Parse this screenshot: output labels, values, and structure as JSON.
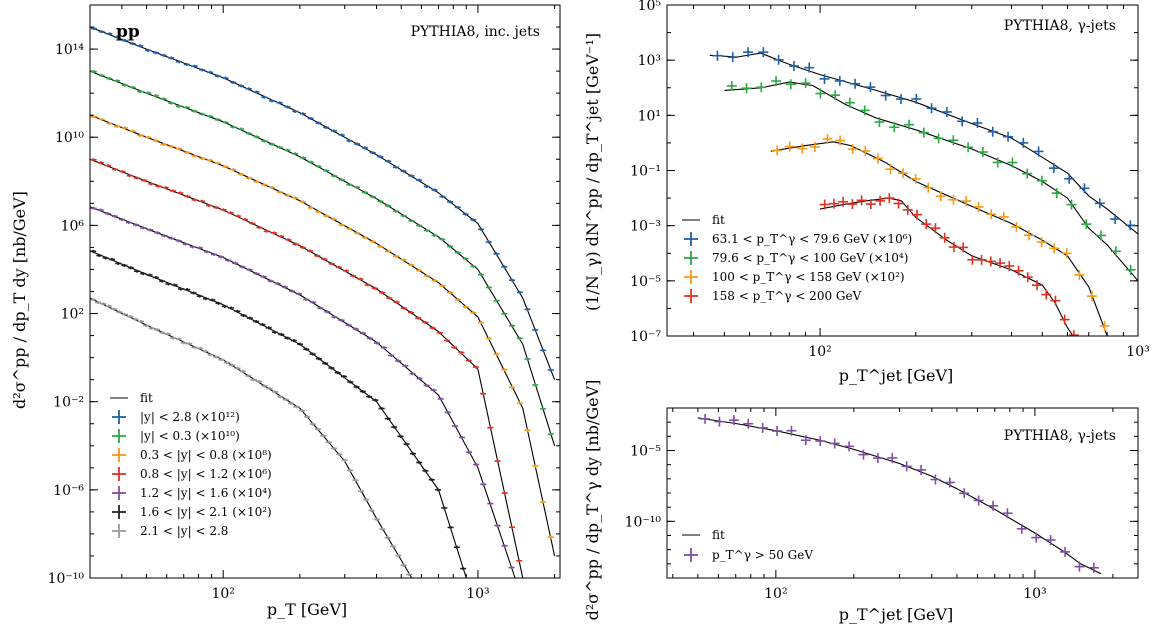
{
  "chart_data": [
    {
      "type": "line",
      "title": "",
      "annotations": {
        "corner_label": "pp",
        "generator": "PYTHIA8, inc. jets"
      },
      "xlabel": "p_T [GeV]",
      "ylabel": "d²σ^pp / dp_T dy [nb/GeV]",
      "xscale": "log",
      "yscale": "log",
      "xlim": [
        30,
        2100
      ],
      "ylim": [
        1e-10,
        1e+16
      ],
      "xticks": [
        {
          "v": 100,
          "label": "10²"
        },
        {
          "v": 1000,
          "label": "10³"
        }
      ],
      "yticks": [
        {
          "v": 1e-10,
          "label": "10⁻¹⁰"
        },
        {
          "v": 1e-06,
          "label": "10⁻⁶"
        },
        {
          "v": 0.01,
          "label": "10⁻²"
        },
        {
          "v": 100.0,
          "label": "10²"
        },
        {
          "v": 1000000.0,
          "label": "10⁶"
        },
        {
          "v": 10000000000.0,
          "label": "10¹⁰"
        },
        {
          "v": 100000000000000.0,
          "label": "10¹⁴"
        }
      ],
      "legend": {
        "placement": "bottom-left",
        "fit_label": "fit"
      },
      "series": [
        {
          "name": "|y| < 2.8 (×10¹²)",
          "color": "#1f5fa8",
          "x": [
            30,
            50,
            100,
            200,
            400,
            700,
            1000,
            1500,
            2000
          ],
          "y": [
            1000000000000000.0,
            100000000000000.0,
            5000000000000.0,
            130000000000.0,
            1600000000.0,
            30000000.0,
            1200000.0,
            500,
            0.1
          ]
        },
        {
          "name": "|y| < 0.3 (×10¹⁰)",
          "color": "#2ca745",
          "x": [
            30,
            50,
            100,
            200,
            400,
            700,
            1000,
            1500,
            2000
          ],
          "y": [
            10000000000000.0,
            1000000000000.0,
            50000000000.0,
            1300000000.0,
            16000000.0,
            300000.0,
            10000.0,
            4,
            0.0001
          ]
        },
        {
          "name": "0.3 < |y| < 0.8 (×10⁸)",
          "color": "#f59a16",
          "x": [
            30,
            50,
            100,
            200,
            400,
            700,
            1000,
            1500,
            2000
          ],
          "y": [
            100000000000.0,
            10000000000.0,
            500000000.0,
            13000000.0,
            150000.0,
            2500.0,
            70,
            0.005,
            1e-09
          ]
        },
        {
          "name": "0.8 < |y| < 1.2 (×10⁶)",
          "color": "#e03020",
          "x": [
            30,
            50,
            100,
            200,
            400,
            700,
            1000,
            1500
          ],
          "y": [
            1000000000.0,
            100000000.0,
            5000000.0,
            120000.0,
            1300.0,
            15,
            0.3,
            1e-10
          ]
        },
        {
          "name": "1.2 < |y| < 1.6 (×10⁴)",
          "color": "#7e4f9e",
          "x": [
            30,
            50,
            100,
            200,
            400,
            700,
            1000,
            1400
          ],
          "y": [
            7000000.0,
            700000.0,
            35000.0,
            700,
            5,
            0.02,
            1e-05,
            1e-10
          ]
        },
        {
          "name": "1.6 < |y| < 2.1 (×10²)",
          "color": "#222222",
          "x": [
            30,
            50,
            100,
            200,
            400,
            700,
            900
          ],
          "y": [
            70000.0,
            6000.0,
            250,
            4,
            0.01,
            1e-06,
            1e-10
          ]
        },
        {
          "name": "2.1 < |y| < 2.8",
          "color": "#999999",
          "x": [
            30,
            50,
            100,
            200,
            300,
            400,
            550
          ],
          "y": [
            500,
            30,
            0.8,
            0.005,
            2e-05,
            5e-08,
            1e-10
          ]
        }
      ]
    },
    {
      "type": "line",
      "title": "",
      "annotations": {
        "generator": "PYTHIA8, γ-jets"
      },
      "xlabel": "p_T^jet [GeV]",
      "ylabel": "(1/N_γ) dN^pp / dp_T^jet [GeV⁻¹]",
      "xscale": "log",
      "yscale": "log",
      "xlim": [
        33,
        1000
      ],
      "ylim": [
        1e-07,
        100000.0
      ],
      "xticks": [
        {
          "v": 100,
          "label": "10²"
        },
        {
          "v": 1000,
          "label": "10³"
        }
      ],
      "yticks": [
        {
          "v": 1e-07,
          "label": "10⁻⁷"
        },
        {
          "v": 1e-05,
          "label": "10⁻⁵"
        },
        {
          "v": 0.001,
          "label": "10⁻³"
        },
        {
          "v": 0.1,
          "label": "10⁻¹"
        },
        {
          "v": 10,
          "label": "10¹"
        },
        {
          "v": 1000,
          "label": "10³"
        },
        {
          "v": 100000.0,
          "label": "10⁵"
        }
      ],
      "legend": {
        "placement": "lower-left",
        "fit_label": "fit"
      },
      "series": [
        {
          "name": "63.1 < p_T^γ < 79.6 GeV (×10⁶)",
          "color": "#1f5fa8",
          "x": [
            45,
            55,
            65,
            80,
            100,
            150,
            200,
            300,
            400,
            500,
            600,
            700,
            800,
            1000
          ],
          "y": [
            1500,
            1300,
            1800,
            700,
            300,
            80,
            30,
            5,
            1.5,
            0.3,
            0.08,
            0.012,
            0.004,
            0.0005
          ]
        },
        {
          "name": "79.6 < p_T^γ < 100 GeV (×10⁴)",
          "color": "#2ca745",
          "x": [
            50,
            65,
            80,
            95,
            120,
            150,
            200,
            300,
            400,
            500,
            600,
            700,
            800,
            1000
          ],
          "y": [
            80,
            100,
            160,
            120,
            25,
            8,
            3,
            0.6,
            0.15,
            0.04,
            0.01,
            0.0008,
            0.0002,
            1e-05
          ]
        },
        {
          "name": "100 < p_T^γ < 158 GeV (×10²)",
          "color": "#f59a16",
          "x": [
            70,
            90,
            110,
            125,
            160,
            200,
            300,
            400,
            500,
            600,
            700,
            800,
            900
          ],
          "y": [
            0.5,
            0.8,
            1.1,
            0.8,
            0.2,
            0.04,
            0.005,
            0.0012,
            0.0003,
            8e-05,
            6e-06,
            1e-07,
            3e-08
          ]
        },
        {
          "name": "158 < p_T^γ < 200 GeV",
          "color": "#e03020",
          "x": [
            100,
            120,
            140,
            165,
            180,
            200,
            250,
            300,
            400,
            500,
            550,
            600,
            650
          ],
          "y": [
            0.004,
            0.006,
            0.008,
            0.01,
            0.008,
            0.002,
            0.0003,
            8e-05,
            2.5e-05,
            7e-06,
            1.5e-06,
            2e-07,
            5e-08
          ]
        }
      ]
    },
    {
      "type": "line",
      "title": "",
      "annotations": {
        "generator": "PYTHIA8, γ-jets"
      },
      "xlabel": "p_T^jet [GeV]",
      "ylabel": "d²σ^pp / dp_T^γ dy [nb/GeV]",
      "xscale": "log",
      "yscale": "log",
      "xlim": [
        38,
        2500
      ],
      "ylim": [
        1e-14,
        0.01
      ],
      "xticks": [
        {
          "v": 100,
          "label": "10²"
        },
        {
          "v": 1000,
          "label": "10³"
        }
      ],
      "yticks": [
        {
          "v": 1e-05,
          "label": "10⁻⁵"
        },
        {
          "v": 1e-10,
          "label": "10⁻¹⁰"
        }
      ],
      "legend": {
        "placement": "lower-left",
        "fit_label": "fit"
      },
      "series": [
        {
          "name": "p_T^γ > 50 GeV",
          "color": "#7e4f9e",
          "x": [
            50,
            70,
            100,
            150,
            200,
            300,
            400,
            500,
            700,
            1000,
            1300,
            1500,
            1800
          ],
          "y": [
            0.002,
            0.0008,
            0.00025,
            5e-05,
            1.2e-05,
            1.2e-06,
            1.5e-07,
            2e-08,
            7e-10,
            1.5e-11,
            7e-13,
            1e-13,
            2e-14
          ]
        }
      ]
    }
  ]
}
